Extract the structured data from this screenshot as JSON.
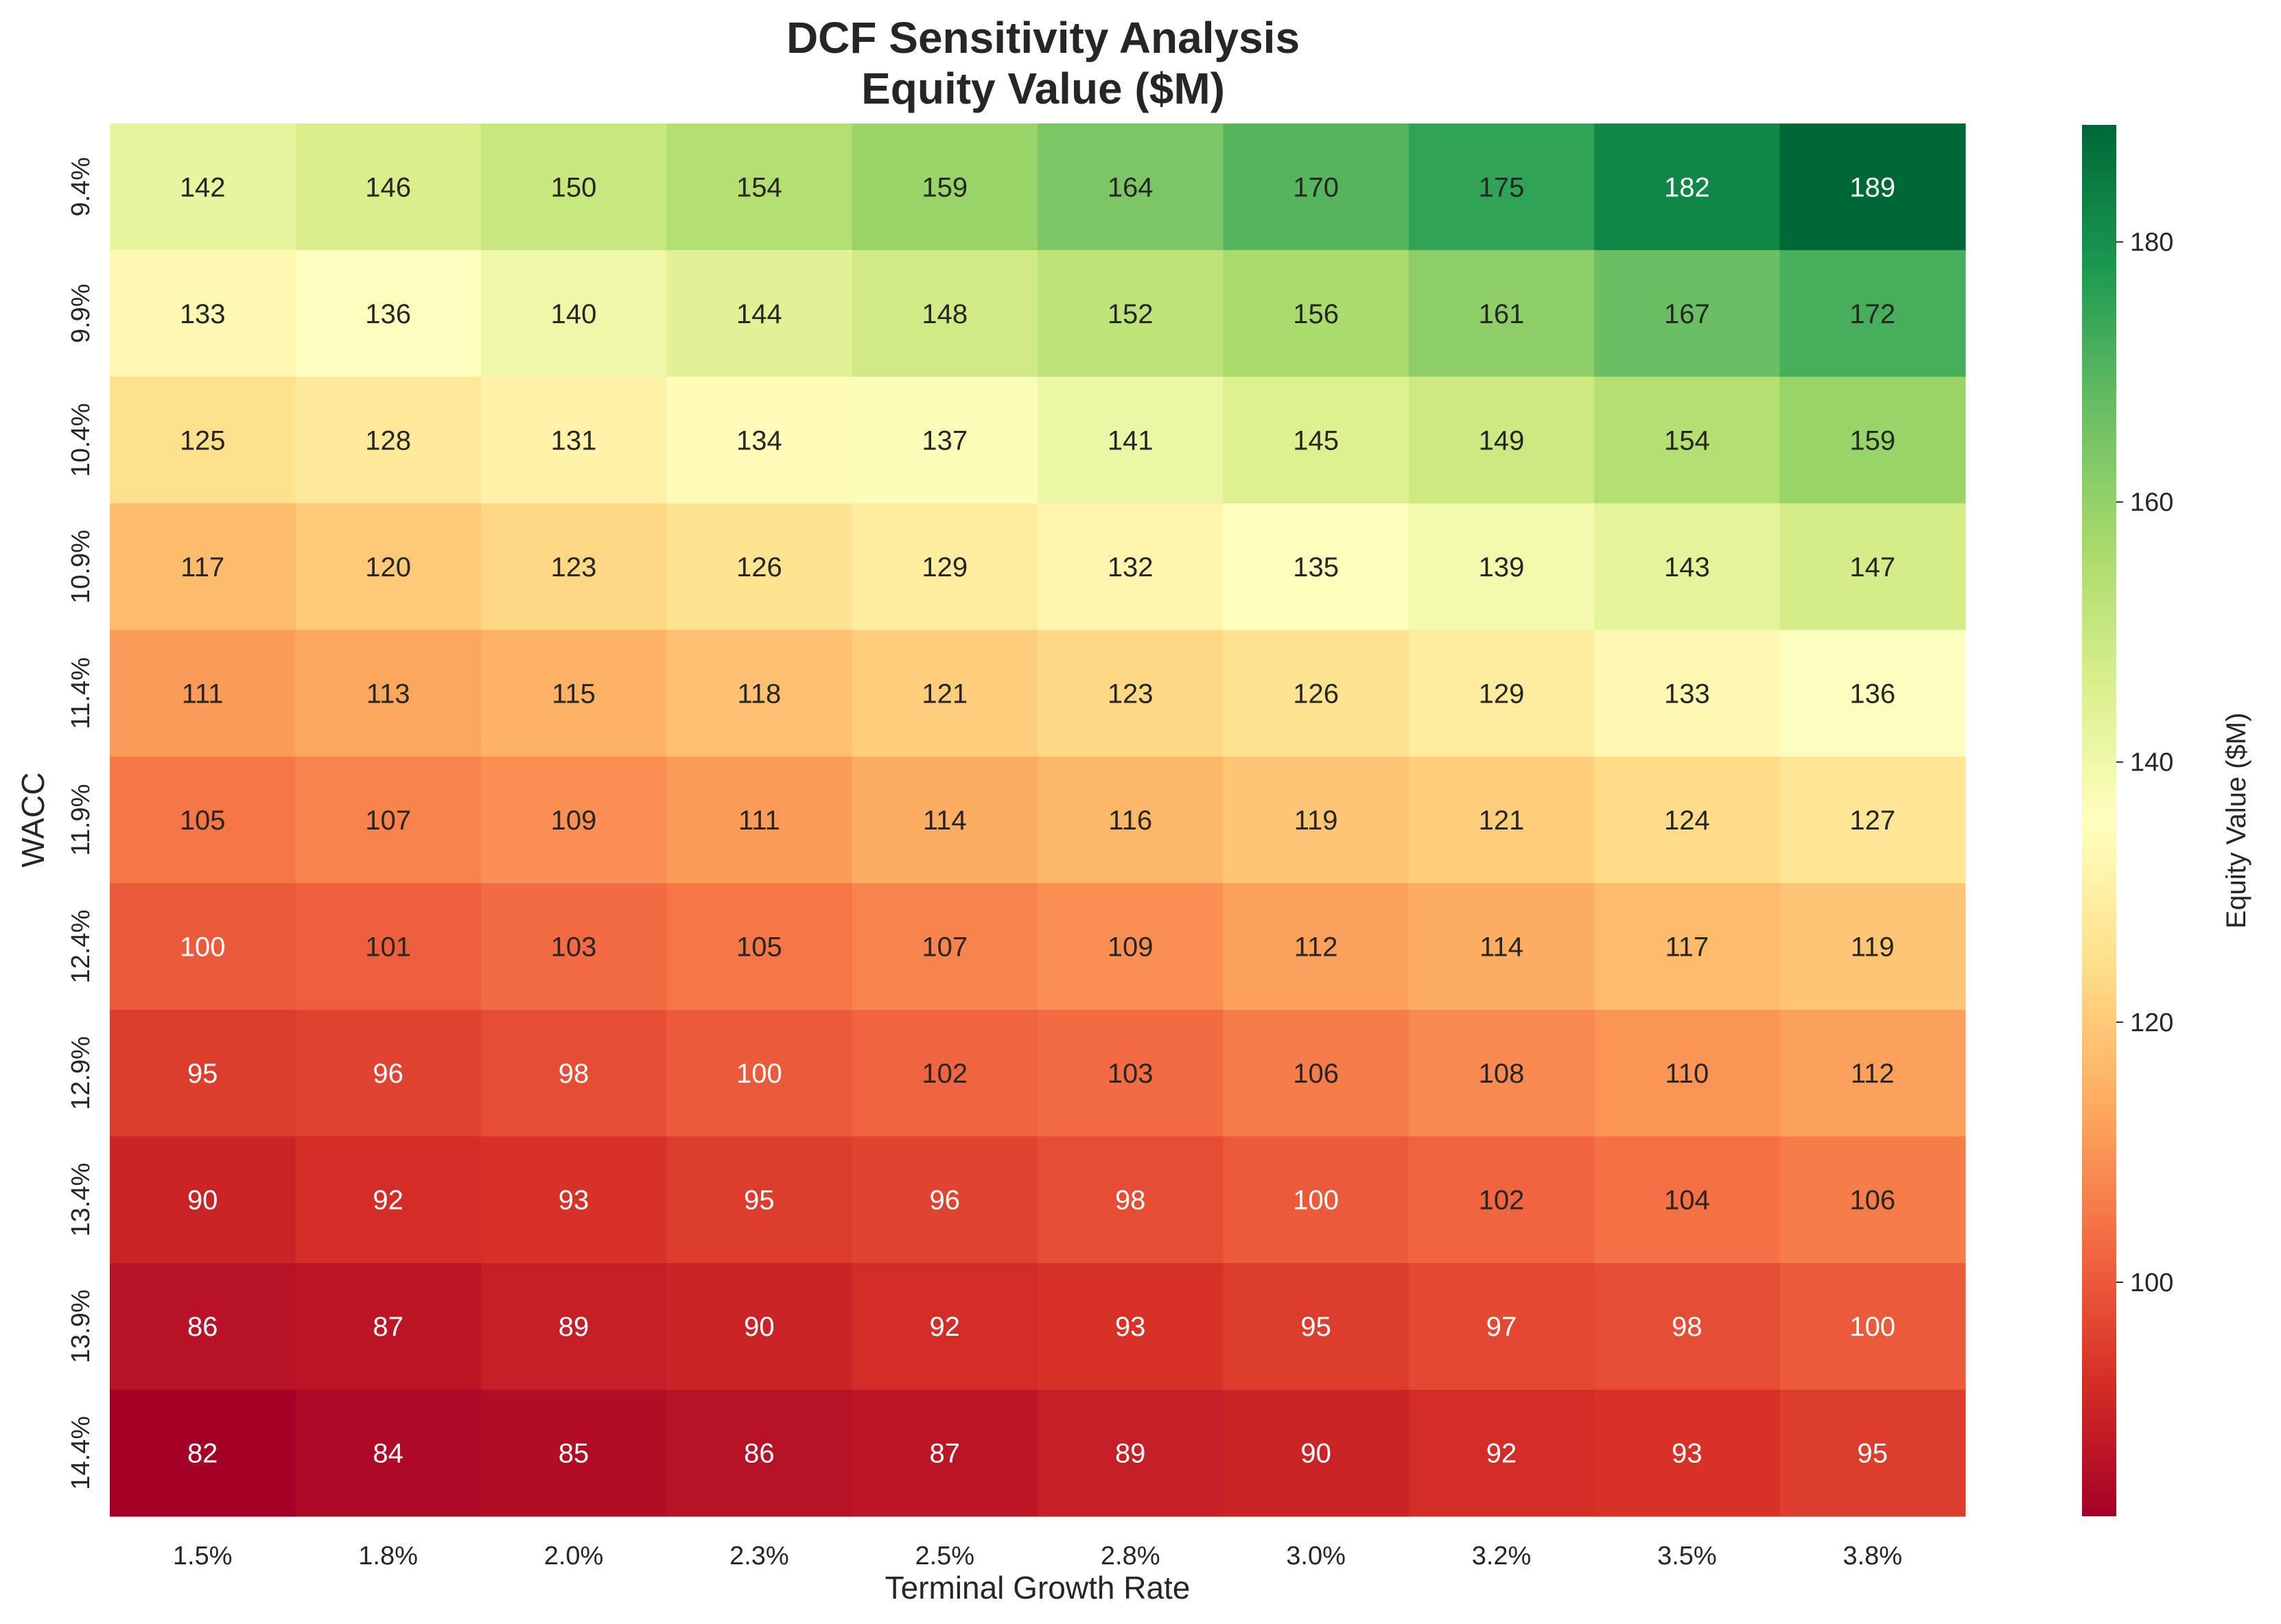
{
  "chart_data": {
    "type": "heatmap",
    "title_lines": [
      "DCF Sensitivity Analysis",
      "Equity Value ($M)"
    ],
    "xlabel": "Terminal Growth Rate",
    "ylabel": "WACC",
    "x_categories": [
      "1.5%",
      "1.8%",
      "2.0%",
      "2.3%",
      "2.5%",
      "2.8%",
      "3.0%",
      "3.2%",
      "3.5%",
      "3.8%"
    ],
    "y_categories": [
      "9.4%",
      "9.9%",
      "10.4%",
      "10.9%",
      "11.4%",
      "11.9%",
      "12.4%",
      "12.9%",
      "13.4%",
      "13.9%",
      "14.4%"
    ],
    "values": [
      [
        142,
        146,
        150,
        154,
        159,
        164,
        170,
        175,
        182,
        189
      ],
      [
        133,
        136,
        140,
        144,
        148,
        152,
        156,
        161,
        167,
        172
      ],
      [
        125,
        128,
        131,
        134,
        137,
        141,
        145,
        149,
        154,
        159
      ],
      [
        117,
        120,
        123,
        126,
        129,
        132,
        135,
        139,
        143,
        147
      ],
      [
        111,
        113,
        115,
        118,
        121,
        123,
        126,
        129,
        133,
        136
      ],
      [
        105,
        107,
        109,
        111,
        114,
        116,
        119,
        121,
        124,
        127
      ],
      [
        100,
        101,
        103,
        105,
        107,
        109,
        112,
        114,
        117,
        119
      ],
      [
        95,
        96,
        98,
        100,
        102,
        103,
        106,
        108,
        110,
        112
      ],
      [
        90,
        92,
        93,
        95,
        96,
        98,
        100,
        102,
        104,
        106
      ],
      [
        86,
        87,
        89,
        90,
        92,
        93,
        95,
        97,
        98,
        100
      ],
      [
        82,
        84,
        85,
        86,
        87,
        89,
        90,
        92,
        93,
        95
      ]
    ],
    "colormap": "RdYlGn",
    "colorbar": {
      "label": "Equity Value ($M)",
      "range": [
        82,
        189
      ],
      "ticks": [
        "100",
        "120",
        "140",
        "160",
        "180"
      ]
    }
  }
}
